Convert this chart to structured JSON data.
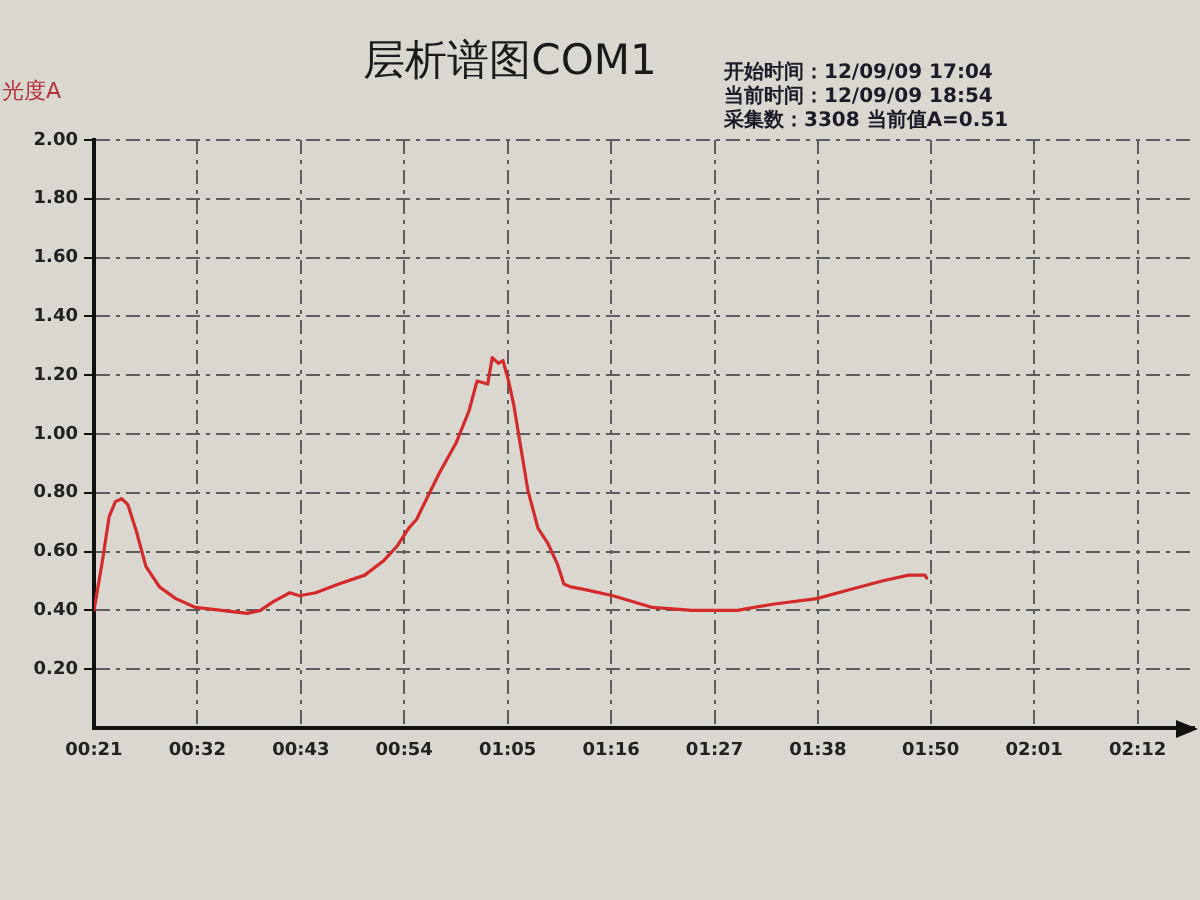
{
  "chart_data": {
    "type": "line",
    "title": "层析谱图COM1",
    "ylabel": "光度A",
    "annotations": [
      "开始时间：12/09/09 17:04",
      "当前时间：12/09/09 18:54",
      "采集数：3308 当前值A=0.51"
    ],
    "x": [
      0.35,
      0.365,
      0.377,
      0.388,
      0.399,
      0.41,
      0.425,
      0.442,
      0.466,
      0.495,
      0.53,
      0.576,
      0.622,
      0.645,
      0.668,
      0.697,
      0.714,
      0.743,
      0.784,
      0.83,
      0.864,
      0.888,
      0.908,
      0.922,
      0.932,
      0.963,
      0.992,
      1.015,
      1.029,
      1.048,
      1.056,
      1.067,
      1.075,
      1.085,
      1.094,
      1.107,
      1.119,
      1.137,
      1.154,
      1.171,
      1.183,
      1.195,
      1.223,
      1.27,
      1.34,
      1.41,
      1.491,
      1.55,
      1.631,
      1.689,
      1.747,
      1.794,
      1.823,
      1.826
    ],
    "series": [
      {
        "color": "#d42a2a",
        "values": [
          0.4,
          0.57,
          0.72,
          0.77,
          0.78,
          0.76,
          0.67,
          0.55,
          0.48,
          0.44,
          0.41,
          0.4,
          0.39,
          0.4,
          0.43,
          0.46,
          0.45,
          0.46,
          0.49,
          0.52,
          0.57,
          0.62,
          0.68,
          0.71,
          0.75,
          0.87,
          0.97,
          1.08,
          1.18,
          1.17,
          1.26,
          1.24,
          1.25,
          1.18,
          1.1,
          0.95,
          0.81,
          0.68,
          0.63,
          0.56,
          0.49,
          0.48,
          0.47,
          0.45,
          0.41,
          0.4,
          0.4,
          0.42,
          0.44,
          0.47,
          0.5,
          0.52,
          0.52,
          0.51
        ]
      }
    ],
    "xlim": [
      0.35,
      2.3
    ],
    "xticks": [
      {
        "value": 0.35,
        "label": "00:21"
      },
      {
        "value": 0.5333,
        "label": "00:32"
      },
      {
        "value": 0.7167,
        "label": "00:43"
      },
      {
        "value": 0.9,
        "label": "00:54"
      },
      {
        "value": 1.0833,
        "label": "01:05"
      },
      {
        "value": 1.2667,
        "label": "01:16"
      },
      {
        "value": 1.45,
        "label": "01:27"
      },
      {
        "value": 1.6333,
        "label": "01:38"
      },
      {
        "value": 1.8333,
        "label": "01:50"
      },
      {
        "value": 2.0167,
        "label": "02:01"
      },
      {
        "value": 2.2,
        "label": "02:12"
      }
    ],
    "ylim": [
      0,
      2
    ],
    "yticks": [
      {
        "value": 0.2,
        "label": "0.20"
      },
      {
        "value": 0.4,
        "label": "0.40"
      },
      {
        "value": 0.6,
        "label": "0.60"
      },
      {
        "value": 0.8,
        "label": "0.80"
      },
      {
        "value": 1,
        "label": "1.00"
      },
      {
        "value": 1.2,
        "label": "1.20"
      },
      {
        "value": 1.4,
        "label": "1.40"
      },
      {
        "value": 1.6,
        "label": "1.60"
      },
      {
        "value": 1.8,
        "label": "1.80"
      },
      {
        "value": 2,
        "label": "2.00"
      }
    ],
    "grid": true,
    "marker": "none",
    "line_style": "solid"
  }
}
